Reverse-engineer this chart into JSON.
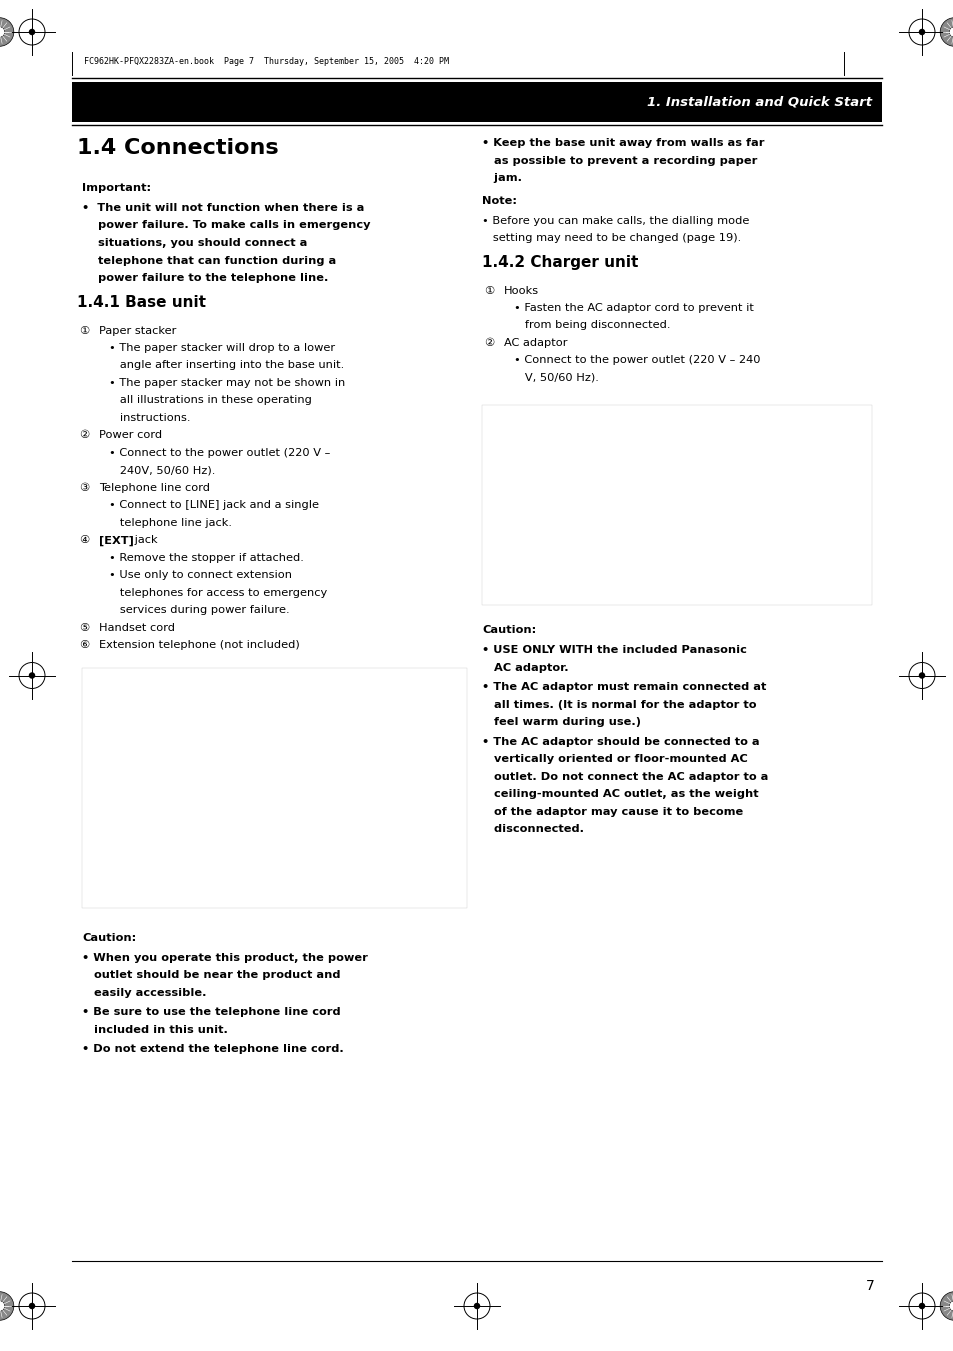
{
  "page_number": "7",
  "header_text": "1. Installation and Quick Start",
  "file_info": "FC962HK-PFQX2283ZA-en.book  Page 7  Thursday, September 15, 2005  4:20 PM",
  "title": "1.4 Connections",
  "bg_color": "#ffffff",
  "header_bg": "#000000",
  "header_fg": "#ffffff",
  "left_col": {
    "title": "1.4 Connections",
    "important_label": "Important:",
    "important_lines": [
      "•  The unit will not function when there is a",
      "    power failure. To make calls in emergency",
      "    situations, you should connect a",
      "    telephone that can function during a",
      "    power failure to the telephone line."
    ],
    "base_title": "1.4.1 Base unit",
    "items": [
      {
        "num": "①",
        "label": "Paper stacker",
        "subs": [
          "• The paper stacker will drop to a lower",
          "   angle after inserting into the base unit.",
          "• The paper stacker may not be shown in",
          "   all illustrations in these operating",
          "   instructions."
        ]
      },
      {
        "num": "②",
        "label": "Power cord",
        "subs": [
          "• Connect to the power outlet (220 V –",
          "   240V, 50/60 Hz)."
        ]
      },
      {
        "num": "③",
        "label": "Telephone line cord",
        "subs": [
          "• Connect to [LINE] jack and a single",
          "   telephone line jack."
        ]
      },
      {
        "num": "④",
        "label_bold": "[EXT]",
        "label_normal": " jack",
        "subs": [
          "• Remove the stopper if attached.",
          "• Use only to connect extension",
          "   telephones for access to emergency",
          "   services during power failure."
        ]
      },
      {
        "num": "⑤",
        "label": "Handset cord",
        "subs": []
      },
      {
        "num": "⑥",
        "label": "Extension telephone (not included)",
        "subs": []
      }
    ],
    "caution_label": "Caution:",
    "caution_items": [
      [
        "• When you operate this product, the power",
        "   outlet should be near the product and",
        "   easily accessible."
      ],
      [
        "• Be sure to use the telephone line cord",
        "   included in this unit."
      ],
      [
        "• Do not extend the telephone line cord."
      ]
    ]
  },
  "right_col": {
    "top_bullet_lines": [
      "• Keep the base unit away from walls as far",
      "   as possible to prevent a recording paper",
      "   jam."
    ],
    "note_label": "Note:",
    "note_lines": [
      "• Before you can make calls, the dialling mode",
      "   setting may need to be changed (page 19)."
    ],
    "charger_title": "1.4.2 Charger unit",
    "charger_items": [
      {
        "num": "①",
        "label": "Hooks",
        "subs": [
          "• Fasten the AC adaptor cord to prevent it",
          "   from being disconnected."
        ]
      },
      {
        "num": "②",
        "label": "AC adaptor",
        "subs": [
          "• Connect to the power outlet (220 V – 240",
          "   V, 50/60 Hz)."
        ]
      }
    ],
    "caution_label": "Caution:",
    "caution_items": [
      [
        "• USE ONLY WITH the included Panasonic",
        "   AC adaptor."
      ],
      [
        "• The AC adaptor must remain connected at",
        "   all times. (It is normal for the adaptor to",
        "   feel warm during use.)"
      ],
      [
        "• The AC adaptor should be connected to a",
        "   vertically oriented or floor-mounted AC",
        "   outlet. Do not connect the AC adaptor to a",
        "   ceiling-mounted AC outlet, as the weight",
        "   of the adaptor may cause it to become",
        "   disconnected."
      ]
    ]
  },
  "pw": 9.54,
  "ph": 13.51,
  "ml": 0.72,
  "mr": 0.72,
  "mt": 0.55,
  "mb": 0.55
}
